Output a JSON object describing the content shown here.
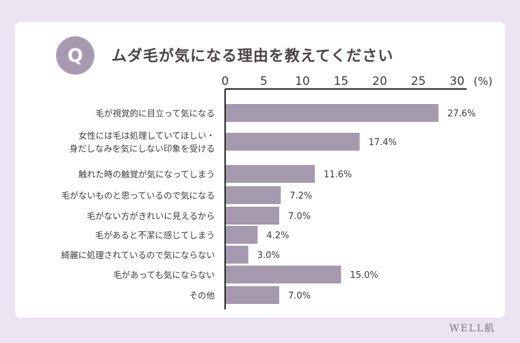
{
  "header": {
    "badge": "Q",
    "question": "ムダ毛が気になる理由を教えてください"
  },
  "watermark": "WELL肌",
  "colors": {
    "background": "#ebe3f2",
    "card": "#ffffff",
    "bar": "#a599ad",
    "badge": "#a79ab0",
    "axis": "#222222"
  },
  "chart_data": {
    "type": "bar",
    "orientation": "horizontal",
    "unit_label": "(%)",
    "xlim": [
      0,
      30
    ],
    "ticks": [
      0,
      5,
      10,
      15,
      20,
      25,
      30
    ],
    "categories": [
      [
        "毛が視覚的に目立って気になる"
      ],
      [
        "女性には毛は処理していてほしい・",
        "身だしなみを気にしない印象を受ける"
      ],
      [
        "触れた時の触覚が気になってしまう"
      ],
      [
        "毛がないものと思っているので気になる"
      ],
      [
        "毛がない方がきれいに見えるから"
      ],
      [
        "毛があると不潔に感じてしまう"
      ],
      [
        "綺麗に処理されているので気にならない"
      ],
      [
        "毛があっても気にならない"
      ],
      [
        "その他"
      ]
    ],
    "values": [
      27.6,
      17.4,
      11.6,
      7.2,
      7.0,
      4.2,
      3.0,
      15.0,
      7.0
    ],
    "value_labels": [
      "27.6%",
      "17.4%",
      "11.6%",
      "7.2%",
      "7.0%",
      "4.2%",
      "3.0%",
      "15.0%",
      "7.0%"
    ]
  }
}
